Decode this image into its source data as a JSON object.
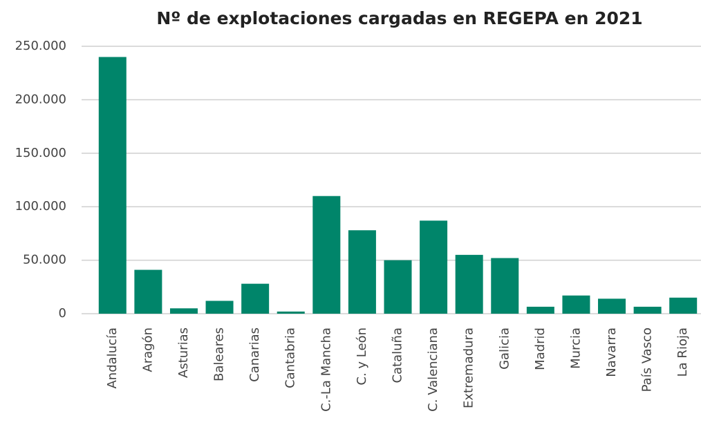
{
  "chart_data": {
    "type": "bar",
    "title": "Nº de explotaciones cargadas en REGEPA en 2021",
    "categories": [
      "Andalucía",
      "Aragón",
      "Asturias",
      "Baleares",
      "Canarias",
      "Cantabria",
      "C.-La Mancha",
      "C. y León",
      "Cataluña",
      "C. Valenciana",
      "Extremadura",
      "Galicia",
      "Madrid",
      "Murcia",
      "Navarra",
      "País Vasco",
      "La Rioja"
    ],
    "values": [
      240000,
      41000,
      5000,
      12000,
      28000,
      2000,
      110000,
      78000,
      50000,
      87000,
      55000,
      52000,
      6500,
      17000,
      14000,
      6500,
      15000
    ],
    "color": "#00856a",
    "ylim": [
      0,
      250000
    ],
    "yticks": [
      0,
      {
        "value": 50000,
        "label": "50.000"
      },
      {
        "value": 100000,
        "label": "100.000"
      },
      {
        "value": 150000,
        "label": "150.000"
      },
      {
        "value": 200000,
        "label": "200.000"
      },
      {
        "value": 250000,
        "label": "250.000"
      }
    ],
    "grid": true
  }
}
